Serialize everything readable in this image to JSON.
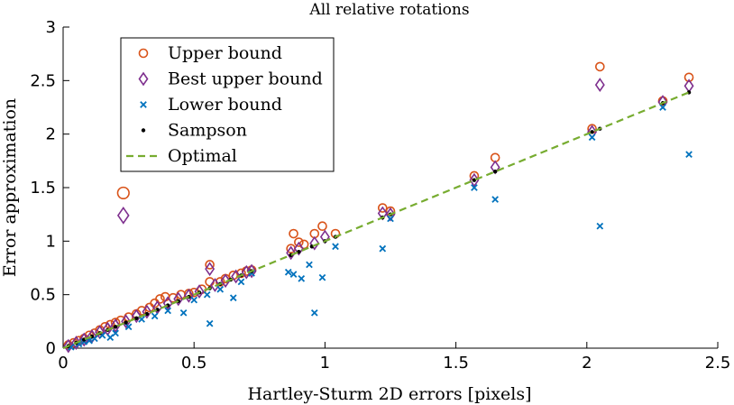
{
  "chart_data": {
    "type": "scatter",
    "title": "All relative rotations",
    "xlabel": "Hartley-Sturm 2D errors [pixels]",
    "ylabel": "Error approximation",
    "xlim": [
      0,
      2.5
    ],
    "ylim": [
      0,
      3
    ],
    "xticks": [
      "0",
      "0.5",
      "1",
      "1.5",
      "2",
      "2.5"
    ],
    "yticks": [
      "0",
      "0.5",
      "1",
      "1.5",
      "2",
      "2.5",
      "3"
    ],
    "xtick_values": [
      0,
      0.5,
      1,
      1.5,
      2,
      2.5
    ],
    "ytick_values": [
      0,
      0.5,
      1,
      1.5,
      2,
      2.5,
      3
    ],
    "legend_position": "top-left",
    "series": [
      {
        "name": "Upper bound",
        "marker": "circle",
        "color": "#D95319",
        "points": [
          [
            0.02,
            0.03
          ],
          [
            0.04,
            0.05
          ],
          [
            0.06,
            0.07
          ],
          [
            0.08,
            0.09
          ],
          [
            0.1,
            0.12
          ],
          [
            0.12,
            0.14
          ],
          [
            0.14,
            0.17
          ],
          [
            0.16,
            0.2
          ],
          [
            0.18,
            0.22
          ],
          [
            0.2,
            0.24
          ],
          [
            0.22,
            0.26
          ],
          [
            0.25,
            0.29
          ],
          [
            0.28,
            0.32
          ],
          [
            0.3,
            0.35
          ],
          [
            0.33,
            0.38
          ],
          [
            0.35,
            0.42
          ],
          [
            0.37,
            0.46
          ],
          [
            0.39,
            0.48
          ],
          [
            0.42,
            0.47
          ],
          [
            0.45,
            0.5
          ],
          [
            0.48,
            0.51
          ],
          [
            0.5,
            0.52
          ],
          [
            0.53,
            0.55
          ],
          [
            0.56,
            0.78
          ],
          [
            0.56,
            0.62
          ],
          [
            0.6,
            0.62
          ],
          [
            0.62,
            0.65
          ],
          [
            0.65,
            0.68
          ],
          [
            0.68,
            0.7
          ],
          [
            0.7,
            0.72
          ],
          [
            0.72,
            0.73
          ],
          [
            0.23,
            1.45
          ],
          [
            0.87,
            0.93
          ],
          [
            0.88,
            1.07
          ],
          [
            0.9,
            0.99
          ],
          [
            0.92,
            0.97
          ],
          [
            0.96,
            1.07
          ],
          [
            0.99,
            1.14
          ],
          [
            1.04,
            1.07
          ],
          [
            1.22,
            1.31
          ],
          [
            1.25,
            1.28
          ],
          [
            1.57,
            1.61
          ],
          [
            1.65,
            1.78
          ],
          [
            2.02,
            2.05
          ],
          [
            2.05,
            2.63
          ],
          [
            2.29,
            2.31
          ],
          [
            2.39,
            2.53
          ]
        ]
      },
      {
        "name": "Best upper bound",
        "marker": "diamond",
        "color": "#7E2F8E",
        "points": [
          [
            0.02,
            0.02
          ],
          [
            0.05,
            0.05
          ],
          [
            0.08,
            0.08
          ],
          [
            0.11,
            0.11
          ],
          [
            0.14,
            0.15
          ],
          [
            0.17,
            0.18
          ],
          [
            0.2,
            0.21
          ],
          [
            0.24,
            0.25
          ],
          [
            0.28,
            0.3
          ],
          [
            0.32,
            0.34
          ],
          [
            0.36,
            0.38
          ],
          [
            0.4,
            0.42
          ],
          [
            0.44,
            0.46
          ],
          [
            0.48,
            0.49
          ],
          [
            0.52,
            0.53
          ],
          [
            0.56,
            0.74
          ],
          [
            0.58,
            0.59
          ],
          [
            0.62,
            0.63
          ],
          [
            0.66,
            0.67
          ],
          [
            0.7,
            0.71
          ],
          [
            0.72,
            0.72
          ],
          [
            0.23,
            1.24
          ],
          [
            0.87,
            0.89
          ],
          [
            0.9,
            0.93
          ],
          [
            0.96,
            0.98
          ],
          [
            1.0,
            1.04
          ],
          [
            1.22,
            1.26
          ],
          [
            1.25,
            1.25
          ],
          [
            1.57,
            1.57
          ],
          [
            1.65,
            1.69
          ],
          [
            2.02,
            2.02
          ],
          [
            2.05,
            2.46
          ],
          [
            2.29,
            2.3
          ],
          [
            2.39,
            2.45
          ]
        ]
      },
      {
        "name": "Lower bound",
        "marker": "cross",
        "color": "#0072BD",
        "points": [
          [
            0.03,
            0.01
          ],
          [
            0.06,
            0.04
          ],
          [
            0.08,
            0.06
          ],
          [
            0.1,
            0.07
          ],
          [
            0.12,
            0.09
          ],
          [
            0.15,
            0.12
          ],
          [
            0.18,
            0.1
          ],
          [
            0.2,
            0.14
          ],
          [
            0.25,
            0.2
          ],
          [
            0.3,
            0.27
          ],
          [
            0.35,
            0.3
          ],
          [
            0.4,
            0.35
          ],
          [
            0.46,
            0.33
          ],
          [
            0.5,
            0.45
          ],
          [
            0.55,
            0.5
          ],
          [
            0.56,
            0.23
          ],
          [
            0.6,
            0.55
          ],
          [
            0.65,
            0.47
          ],
          [
            0.68,
            0.62
          ],
          [
            0.72,
            0.7
          ],
          [
            0.86,
            0.71
          ],
          [
            0.88,
            0.69
          ],
          [
            0.91,
            0.65
          ],
          [
            0.94,
            0.78
          ],
          [
            0.96,
            0.33
          ],
          [
            0.99,
            0.66
          ],
          [
            1.04,
            0.95
          ],
          [
            1.22,
            0.93
          ],
          [
            1.25,
            1.21
          ],
          [
            1.57,
            1.5
          ],
          [
            1.65,
            1.39
          ],
          [
            2.02,
            1.97
          ],
          [
            2.05,
            1.14
          ],
          [
            2.29,
            2.25
          ],
          [
            2.39,
            1.81
          ]
        ]
      },
      {
        "name": "Sampson",
        "marker": "dot",
        "color": "#000000",
        "points": [
          [
            0.02,
            0.02
          ],
          [
            0.05,
            0.05
          ],
          [
            0.08,
            0.08
          ],
          [
            0.11,
            0.11
          ],
          [
            0.14,
            0.14
          ],
          [
            0.17,
            0.17
          ],
          [
            0.2,
            0.2
          ],
          [
            0.24,
            0.24
          ],
          [
            0.28,
            0.28
          ],
          [
            0.32,
            0.32
          ],
          [
            0.36,
            0.36
          ],
          [
            0.4,
            0.4
          ],
          [
            0.44,
            0.44
          ],
          [
            0.48,
            0.48
          ],
          [
            0.52,
            0.52
          ],
          [
            0.56,
            0.56
          ],
          [
            0.6,
            0.6
          ],
          [
            0.64,
            0.64
          ],
          [
            0.68,
            0.68
          ],
          [
            0.72,
            0.72
          ],
          [
            0.87,
            0.87
          ],
          [
            0.9,
            0.9
          ],
          [
            0.95,
            0.95
          ],
          [
            1.0,
            1.0
          ],
          [
            1.04,
            1.04
          ],
          [
            1.22,
            1.22
          ],
          [
            1.25,
            1.25
          ],
          [
            1.57,
            1.57
          ],
          [
            1.65,
            1.65
          ],
          [
            2.02,
            2.02
          ],
          [
            2.05,
            2.05
          ],
          [
            2.29,
            2.29
          ],
          [
            2.39,
            2.39
          ]
        ]
      },
      {
        "name": "Optimal",
        "marker": "dashed-line",
        "color": "#77AC30",
        "line": [
          [
            0,
            0
          ],
          [
            2.39,
            2.39
          ]
        ]
      }
    ]
  }
}
